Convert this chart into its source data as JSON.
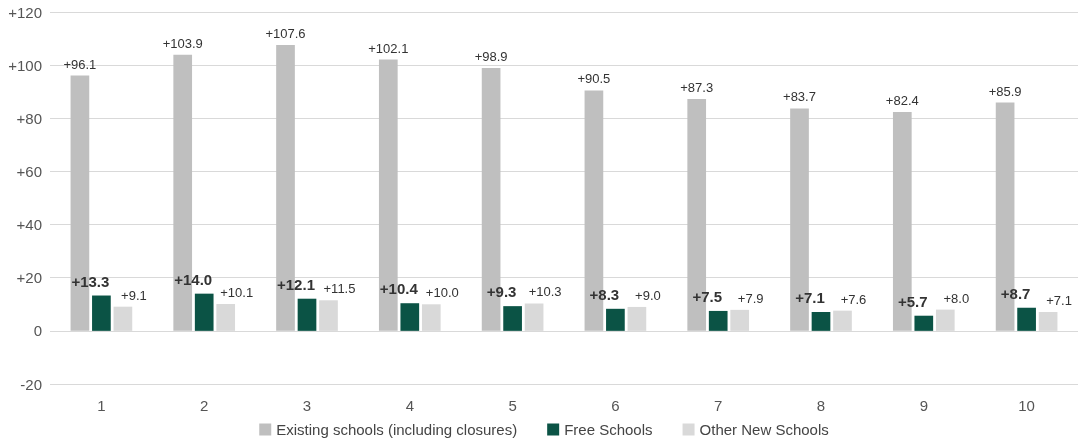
{
  "chart_data": {
    "type": "bar",
    "categories": [
      "1",
      "2",
      "3",
      "4",
      "5",
      "6",
      "7",
      "8",
      "9",
      "10"
    ],
    "series": [
      {
        "name": "Existing schools (including closures)",
        "color": "#bfbfbf",
        "values": [
          96.1,
          103.9,
          107.6,
          102.1,
          98.9,
          90.5,
          87.3,
          83.7,
          82.4,
          85.9
        ],
        "value_labels": [
          "+96.1",
          "+103.9",
          "+107.6",
          "+102.1",
          "+98.9",
          "+90.5",
          "+87.3",
          "+83.7",
          "+82.4",
          "+85.9"
        ]
      },
      {
        "name": "Free Schools",
        "color": "#0b5345",
        "values": [
          13.3,
          14.0,
          12.1,
          10.4,
          9.3,
          8.3,
          7.5,
          7.1,
          5.7,
          8.7
        ],
        "value_labels": [
          "+13.3",
          "+14.0",
          "+12.1",
          "+10.4",
          "+9.3",
          "+8.3",
          "+7.5",
          "+7.1",
          "+5.7",
          "+8.7"
        ]
      },
      {
        "name": "Other New Schools",
        "color": "#d9d9d9",
        "values": [
          9.1,
          10.1,
          11.5,
          10.0,
          10.3,
          9.0,
          7.9,
          7.6,
          8.0,
          7.1
        ],
        "value_labels": [
          "+9.1",
          "+10.1",
          "+11.5",
          "+10.0",
          "+10.3",
          "+9.0",
          "+7.9",
          "+7.6",
          "+8.0",
          "+7.1"
        ]
      }
    ],
    "ylim": [
      -20,
      120
    ],
    "yticks": [
      -20,
      0,
      {
        "value": 20,
        "label": "+20"
      },
      {
        "value": 40,
        "label": "+40"
      },
      {
        "value": 60,
        "label": "+60"
      },
      {
        "value": 80,
        "label": "+80"
      },
      {
        "value": 100,
        "label": "+100"
      },
      {
        "value": 120,
        "label": "+120"
      }
    ],
    "grid": "y",
    "legend": "bottom"
  }
}
